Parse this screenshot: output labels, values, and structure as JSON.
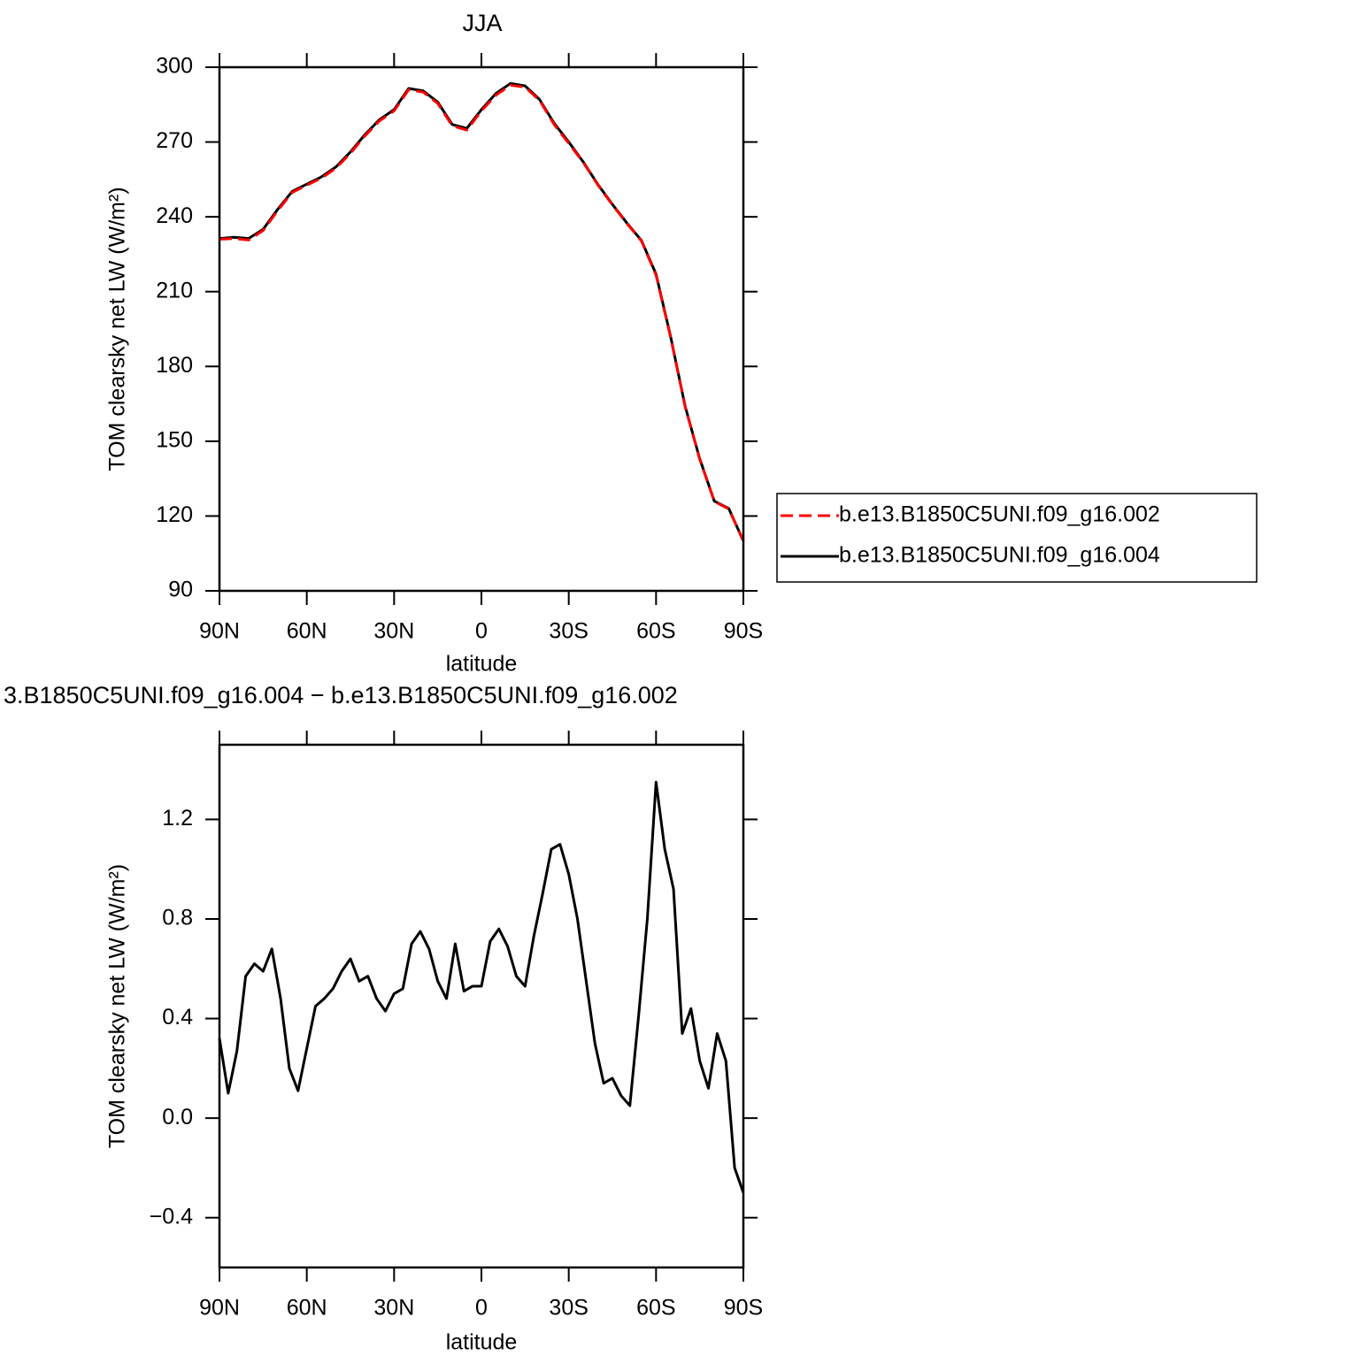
{
  "chart_data": [
    {
      "type": "line",
      "title": "JJA",
      "xlabel": "latitude",
      "ylabel": "TOM clearsky net LW (W/m²)",
      "x": [
        90,
        85,
        80,
        75,
        70,
        65,
        60,
        55,
        50,
        45,
        40,
        35,
        30,
        25,
        20,
        15,
        10,
        5,
        0,
        -5,
        -10,
        -15,
        -20,
        -25,
        -30,
        -35,
        -40,
        -45,
        -50,
        -55,
        -60,
        -65,
        -70,
        -75,
        -80,
        -85,
        -90
      ],
      "series": [
        {
          "name": "b.e13.B1850C5UNI.f09_g16.002",
          "color": "#ff0000",
          "linestyle": "dashed",
          "values": [
            231,
            231.3,
            230.7,
            234.5,
            242.5,
            249.8,
            252.7,
            255.5,
            259.5,
            265.5,
            272.5,
            278.5,
            282.5,
            291,
            290,
            285.5,
            276.5,
            274.8,
            282.5,
            288.8,
            292.8,
            292,
            286.7,
            277,
            269.5,
            261.8,
            252.8,
            244.8,
            237.3,
            230.3,
            216.6,
            191.7,
            163.8,
            142.8,
            125.9,
            122.8,
            110
          ]
        },
        {
          "name": "b.e13.B1850C5UNI.f09_g16.004",
          "color": "#000000",
          "linestyle": "solid",
          "values": [
            231.3,
            231.8,
            231.3,
            235,
            243,
            250.2,
            253.1,
            256,
            260,
            266,
            273,
            279,
            283,
            291.5,
            290.5,
            286,
            277,
            275.5,
            283,
            289.5,
            293.5,
            292.5,
            287,
            277.5,
            270,
            262,
            253,
            245,
            237.5,
            230.5,
            217,
            192,
            164,
            143,
            126,
            123,
            110
          ]
        }
      ],
      "xlim": [
        90,
        -90
      ],
      "xticks": [
        {
          "value": 90,
          "label": "90N"
        },
        {
          "value": 60,
          "label": "60N"
        },
        {
          "value": 30,
          "label": "30N"
        },
        0,
        {
          "value": -30,
          "label": "30S"
        },
        {
          "value": -60,
          "label": "60S"
        },
        {
          "value": -90,
          "label": "90S"
        }
      ],
      "ylim": [
        90,
        300
      ],
      "yticks": [
        90,
        120,
        150,
        180,
        210,
        240,
        270,
        300
      ],
      "legend": "right"
    },
    {
      "type": "line",
      "title": "3.B1850C5UNI.f09_g16.004 − b.e13.B1850C5UNI.f09_g16.002",
      "xlabel": "latitude",
      "ylabel": "TOM clearsky net LW (W/m²)",
      "x": [
        90,
        87,
        84,
        81,
        78,
        75,
        72,
        69,
        66,
        63,
        60,
        57,
        54,
        51,
        48,
        45,
        42,
        39,
        36,
        33,
        30,
        27,
        24,
        21,
        18,
        15,
        12,
        9,
        6,
        3,
        0,
        -3,
        -6,
        -9,
        -12,
        -15,
        -18,
        -21,
        -24,
        -27,
        -30,
        -33,
        -36,
        -39,
        -42,
        -45,
        -48,
        -51,
        -54,
        -57,
        -60,
        -63,
        -66,
        -69,
        -72,
        -75,
        -78,
        -81,
        -84,
        -87,
        -90
      ],
      "series": [
        {
          "name": null,
          "color": "#000000",
          "linestyle": "solid",
          "values": [
            0.32,
            0.1,
            0.27,
            0.57,
            0.62,
            0.59,
            0.68,
            0.48,
            0.2,
            0.11,
            0.28,
            0.45,
            0.48,
            0.52,
            0.59,
            0.64,
            0.55,
            0.57,
            0.48,
            0.43,
            0.5,
            0.52,
            0.7,
            0.75,
            0.68,
            0.55,
            0.48,
            0.7,
            0.51,
            0.53,
            0.53,
            0.71,
            0.76,
            0.69,
            0.57,
            0.53,
            0.73,
            0.9,
            1.08,
            1.1,
            0.98,
            0.8,
            0.55,
            0.3,
            0.14,
            0.16,
            0.09,
            0.05,
            0.41,
            0.8,
            1.35,
            1.08,
            0.92,
            0.34,
            0.44,
            0.23,
            0.12,
            0.34,
            0.23,
            -0.2,
            -0.3
          ]
        }
      ],
      "xlim": [
        90,
        -90
      ],
      "xticks": [
        {
          "value": 90,
          "label": "90N"
        },
        {
          "value": 60,
          "label": "60N"
        },
        {
          "value": 30,
          "label": "30N"
        },
        0,
        {
          "value": -30,
          "label": "30S"
        },
        {
          "value": -60,
          "label": "60S"
        },
        {
          "value": -90,
          "label": "90S"
        }
      ],
      "ylim": [
        -0.6,
        1.5
      ],
      "yticks": [
        {
          "value": -0.4,
          "label": "−0.4"
        },
        {
          "value": 0,
          "label": "0.0"
        },
        0.4,
        0.8,
        1.2
      ]
    }
  ]
}
